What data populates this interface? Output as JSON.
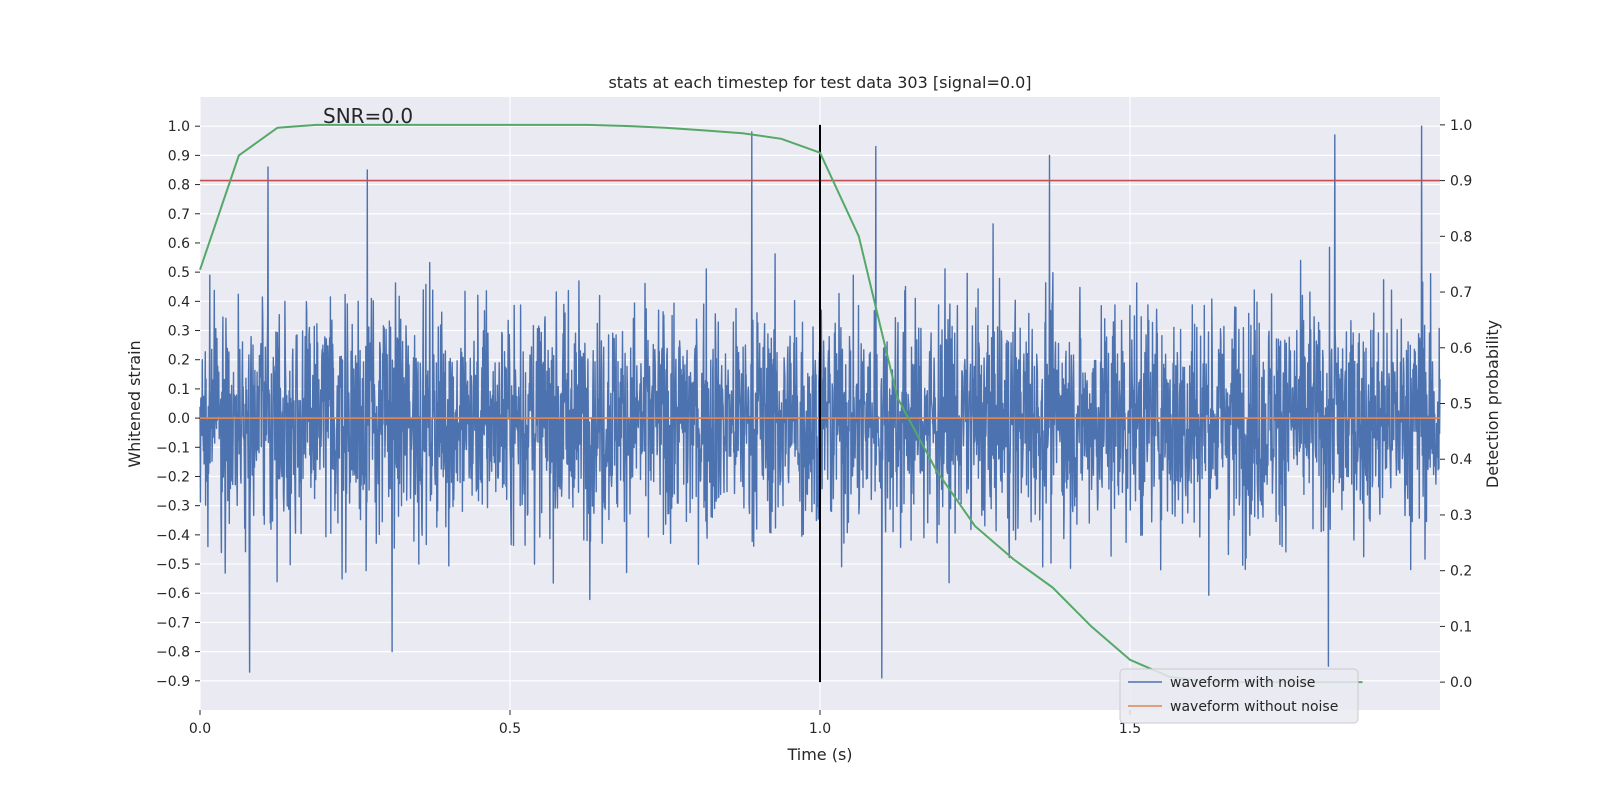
{
  "chart_data": {
    "type": "line",
    "title": "stats at each timestep for test data 303 [signal=0.0]",
    "xlabel": "Time (s)",
    "ylabel": "Whitened strain",
    "y2label": "Detection probability",
    "xlim": [
      0.0,
      2.0
    ],
    "ylim": [
      -1.0,
      1.1
    ],
    "y2lim": [
      -0.05,
      1.05
    ],
    "grid": true,
    "background": "#eaeaf2",
    "x_ticks": [
      "0.0",
      "0.5",
      "1.0",
      "1.5"
    ],
    "x_tick_values": [
      0.0,
      0.5,
      1.0,
      1.5
    ],
    "y_ticks": [
      "1.0",
      "0.9",
      "0.8",
      "0.7",
      "0.6",
      "0.5",
      "0.4",
      "0.3",
      "0.2",
      "0.1",
      "0.0",
      "−0.1",
      "−0.2",
      "−0.3",
      "−0.4",
      "−0.5",
      "−0.6",
      "−0.7",
      "−0.8",
      "−0.9"
    ],
    "y_tick_values": [
      1.0,
      0.9,
      0.8,
      0.7,
      0.6,
      0.5,
      0.4,
      0.3,
      0.2,
      0.1,
      0.0,
      -0.1,
      -0.2,
      -0.3,
      -0.4,
      -0.5,
      -0.6,
      -0.7,
      -0.8,
      -0.9
    ],
    "y2_ticks": [
      "1.0",
      "0.9",
      "0.8",
      "0.7",
      "0.6",
      "0.5",
      "0.4",
      "0.3",
      "0.2",
      "0.1",
      "0.0"
    ],
    "y2_tick_values": [
      1.0,
      0.9,
      0.8,
      0.7,
      0.6,
      0.5,
      0.4,
      0.3,
      0.2,
      0.1,
      0.0
    ],
    "annotation": "SNR=0.0",
    "legend_position": "lower-right",
    "series": [
      {
        "name": "waveform with noise",
        "color": "#4c72b0",
        "axis": "left",
        "description": "dense noise series, 0 to 2 s, roughly ±0.5 with peaks near ±0.9",
        "peak_samples": [
          {
            "x": 0.08,
            "y": -0.87
          },
          {
            "x": 0.11,
            "y": 0.86
          },
          {
            "x": 0.27,
            "y": 0.85
          },
          {
            "x": 0.31,
            "y": -0.8
          },
          {
            "x": 0.89,
            "y": 0.98
          },
          {
            "x": 1.09,
            "y": 0.93
          },
          {
            "x": 1.1,
            "y": -0.89
          },
          {
            "x": 1.37,
            "y": 0.9
          },
          {
            "x": 1.83,
            "y": 0.97
          },
          {
            "x": 1.97,
            "y": 1.0
          },
          {
            "x": 1.82,
            "y": -0.85
          }
        ]
      },
      {
        "name": "waveform without noise",
        "color": "#dd8452",
        "axis": "left",
        "x": [
          0.0,
          2.0
        ],
        "y": [
          0.0,
          0.0
        ]
      },
      {
        "name": "detection probability",
        "color": "#55a868",
        "axis": "right",
        "x": [
          0.0,
          0.0625,
          0.125,
          0.1875,
          0.25,
          0.3125,
          0.375,
          0.4375,
          0.5,
          0.5625,
          0.625,
          0.6875,
          0.75,
          0.8125,
          0.875,
          0.9375,
          1.0,
          1.0625,
          1.125,
          1.1875,
          1.25,
          1.3125,
          1.375,
          1.4375,
          1.5,
          1.5625,
          1.625,
          1.6875,
          1.75,
          1.8125,
          1.875
        ],
        "y": [
          0.74,
          0.945,
          0.995,
          1.0,
          1.0,
          1.0,
          1.0,
          1.0,
          1.0,
          1.0,
          1.0,
          0.998,
          0.995,
          0.99,
          0.985,
          0.975,
          0.95,
          0.8,
          0.51,
          0.38,
          0.28,
          0.22,
          0.17,
          0.1,
          0.04,
          0.01,
          0.0,
          0.0,
          0.0,
          0.0,
          0.0
        ]
      }
    ],
    "reference_lines": [
      {
        "kind": "horizontal",
        "color": "#c44e52",
        "value": 0.9,
        "axis": "right"
      },
      {
        "kind": "vertical",
        "color": "#000000",
        "x": 1.0,
        "y_from": 0.0,
        "y_to": 1.0,
        "axis": "right"
      }
    ]
  }
}
